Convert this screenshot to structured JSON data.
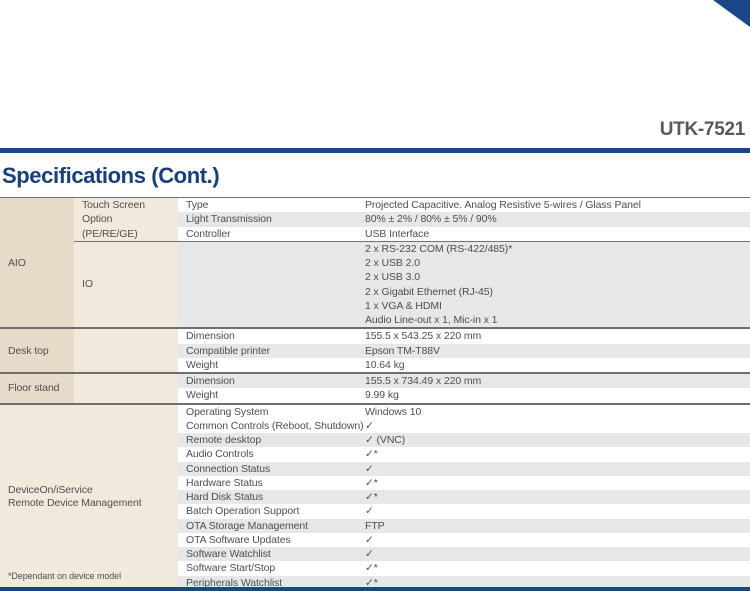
{
  "header": {
    "product_code": "UTK-7521",
    "section_title": "Specifications (Cont.)"
  },
  "colors": {
    "navy": "#1a4787",
    "heading_navy": "#173f7c",
    "group_column_beige": "#e8dac9",
    "sub_column_beige": "#f2e9dd",
    "shaded_row_gray": "#e6e7e8",
    "body_text_gray": "#4e4f51",
    "product_code_gray": "#57585a"
  },
  "table": {
    "aio": {
      "group": "AIO",
      "touch": {
        "label_lines": [
          "Touch Screen Option",
          "(PE/RE/GE)"
        ],
        "rows": [
          {
            "name": "Type",
            "value": "Projected Capacitive. Analog Resistive 5-wires / Glass Panel"
          },
          {
            "name": "Light Transmission",
            "value": "80% ± 2% / 80% ± 5% / 90%"
          },
          {
            "name": "Controller",
            "value": "USB Interface"
          }
        ]
      },
      "io": {
        "label": "IO",
        "lines": [
          "2 x RS-232 COM (RS-422/485)*",
          "2 x USB 2.0",
          "2 x USB 3.0",
          "2 x Gigabit Ethernet (RJ-45)",
          "1 x VGA & HDMI",
          "Audio Line-out x 1, Mic-in x 1"
        ]
      }
    },
    "desk_top": {
      "group": "Desk top",
      "rows": [
        {
          "name": "Dimension",
          "value": "155.5 x 543.25 x 220 mm"
        },
        {
          "name": "Compatible printer",
          "value": "Epson TM-T88V"
        },
        {
          "name": "Weight",
          "value": "10.64 kg"
        }
      ]
    },
    "floor_stand": {
      "group": "Floor stand",
      "rows": [
        {
          "name": "Dimension",
          "value": "155.5 x 734.49 x 220 mm"
        },
        {
          "name": "Weight",
          "value": "9.99 kg"
        }
      ]
    },
    "deviceon": {
      "group_lines": [
        "DeviceOn/iService",
        "Remote Device Management"
      ],
      "footnote": "*Dependant on device model",
      "rows": [
        {
          "name": "Operating System",
          "value": "Windows 10"
        },
        {
          "name": "Common Controls (Reboot, Shutdown)",
          "value": "✓"
        },
        {
          "name": "Remote desktop",
          "value": "✓ (VNC)"
        },
        {
          "name": "Audio Controls",
          "value": "✓*"
        },
        {
          "name": "Connection Status",
          "value": "✓"
        },
        {
          "name": "Hardware Status",
          "value": "✓*"
        },
        {
          "name": "Hard Disk Status",
          "value": "✓*"
        },
        {
          "name": "Batch Operation Support",
          "value": "✓"
        },
        {
          "name": "OTA Storage Management",
          "value": "FTP"
        },
        {
          "name": "OTA Software Updates",
          "value": "✓"
        },
        {
          "name": "Software Watchlist",
          "value": "✓"
        },
        {
          "name": "Software Start/Stop",
          "value": "✓*"
        },
        {
          "name": "Peripherals Watchlist",
          "value": "✓*"
        }
      ]
    }
  }
}
